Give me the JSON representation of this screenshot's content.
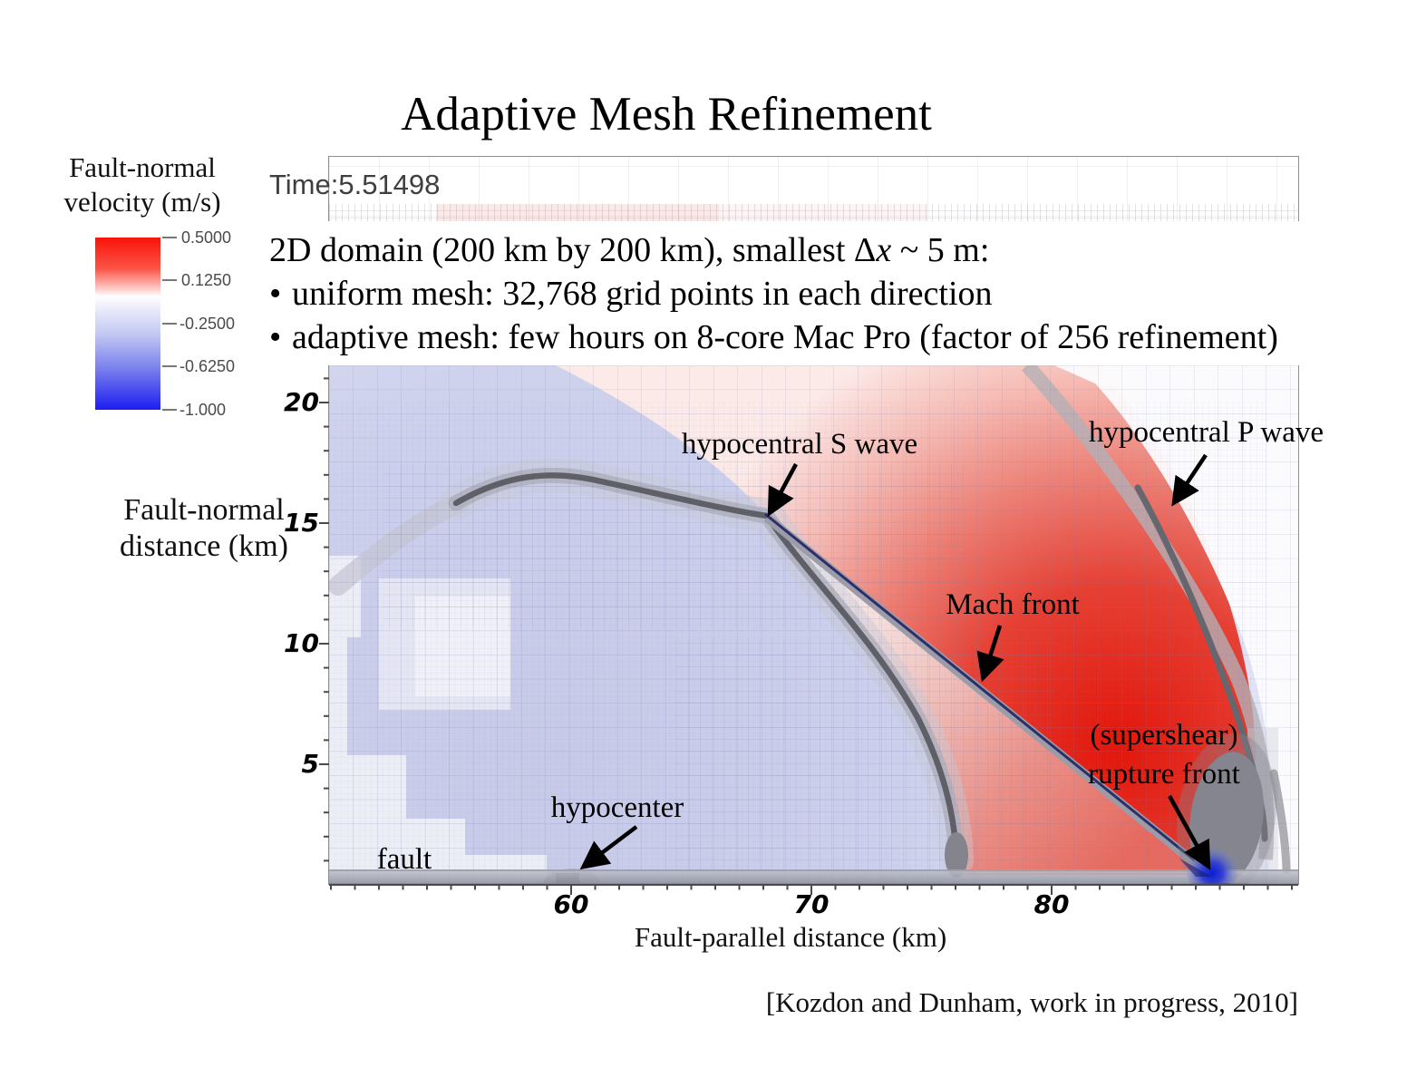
{
  "title": "Adaptive Mesh Refinement",
  "legend": {
    "label_line1": "Fault-normal",
    "label_line2": "velocity (m/s)",
    "tick_labels": [
      "0.5000",
      "0.1250",
      "-0.2500",
      "-0.6250",
      "-1.000"
    ]
  },
  "viewer": {
    "time_label": "Time:5.51498"
  },
  "notes": {
    "bullet_char": "•",
    "line1_pre": "2D domain (200 km by 200 km), smallest Δ",
    "line1_italic": "x",
    "line1_post": " ~ 5 m:",
    "bullet1": "uniform mesh: 32,768 grid points in each direction",
    "bullet2": "adaptive mesh: few hours on 8-core Mac Pro (factor of 256 refinement)"
  },
  "axes": {
    "xlabel": "Fault-parallel distance (km)",
    "ylabel_line1": "Fault-normal",
    "ylabel_line2": "distance (km)"
  },
  "annotations": {
    "s_wave": "hypocentral S wave",
    "p_wave": "hypocentral P wave",
    "mach": "Mach front",
    "supershear_line1": "(supershear)",
    "supershear_line2": "rupture front",
    "hypocenter": "hypocenter",
    "fault": "fault"
  },
  "citation": "[Kozdon and Dunham, work in progress, 2010]",
  "colors": {
    "positive_red": "#e3150a",
    "negative_blue": "#1d1df2",
    "lavender_field": "#cdd0ec",
    "wavefront_gray": "#5f5f68",
    "mach_line_navy": "#2b2f6b",
    "halo_gray": "#a7a8b4"
  },
  "chart_data": {
    "type": "heatmap",
    "title": "Adaptive Mesh Refinement",
    "xlabel": "Fault-parallel distance (km)",
    "ylabel": "Fault-normal distance (km)",
    "xlim": [
      50,
      90
    ],
    "ylim": [
      0,
      21.5
    ],
    "xticks": [
      60,
      70,
      80
    ],
    "yticks": [
      5,
      10,
      15,
      20
    ],
    "x_minor_step": 1,
    "y_minor_step": 1,
    "grid": "adaptive mesh refinement blocks (fine cells track wavefronts)",
    "time": 5.51498,
    "colorbar": {
      "label": "Fault-normal velocity (m/s)",
      "tick_values": [
        0.5,
        0.125,
        -0.25,
        -0.625,
        -1.0
      ],
      "colormap": "red-white-blue"
    },
    "features": [
      {
        "name": "fault",
        "description": "horizontal fault trace along y = 0"
      },
      {
        "name": "hypocenter",
        "x": 60,
        "y": 0
      },
      {
        "name": "supershear rupture front",
        "x": 86.7,
        "y": 0
      },
      {
        "name": "Mach front",
        "from": [
          68.2,
          15.3
        ],
        "to": [
          86.7,
          0
        ]
      },
      {
        "name": "hypocentral S wave",
        "arc_from": [
          50.3,
          12.4
        ],
        "apex": [
          60.9,
          16.7
        ],
        "arc_to": [
          86.5,
          1.2
        ]
      },
      {
        "name": "hypocentral P wave",
        "arc_from": [
          79.9,
          16.4
        ],
        "arc_to": [
          85.2,
          2.0
        ]
      }
    ]
  }
}
